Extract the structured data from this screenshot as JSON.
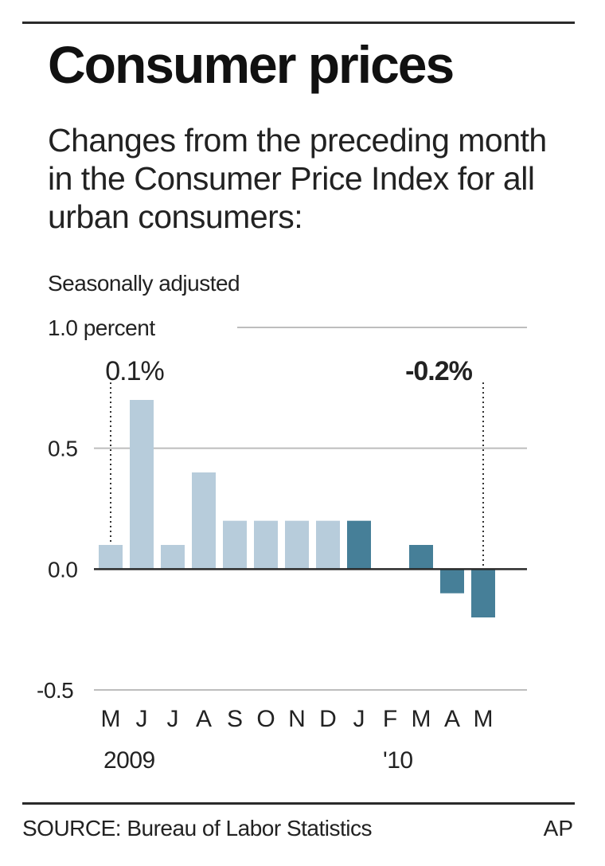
{
  "header": {
    "title": "Consumer prices",
    "subtitle": "Changes from the preceding month in the Consumer Price Index for all urban consumers:",
    "note": "Seasonally adjusted"
  },
  "footer": {
    "source": "SOURCE: Bureau of Labor Statistics",
    "credit": "AP"
  },
  "colors": {
    "bar_2009": "#b7ccdb",
    "bar_2010": "#467f98",
    "gridline": "#bdbdbd",
    "zero_line": "#2a2a2a"
  },
  "chart_data": {
    "type": "bar",
    "title": "Consumer prices",
    "xlabel": "",
    "ylabel": "",
    "unit_label": "percent",
    "categories": [
      "M",
      "J",
      "J",
      "A",
      "S",
      "O",
      "N",
      "D",
      "J",
      "F",
      "M",
      "A",
      "M"
    ],
    "values": [
      0.1,
      0.7,
      0.1,
      0.4,
      0.2,
      0.2,
      0.2,
      0.2,
      0.2,
      0.0,
      0.1,
      -0.1,
      -0.2
    ],
    "year_labels": [
      {
        "index": 0,
        "text": "2009"
      },
      {
        "index": 9,
        "text": "'10"
      }
    ],
    "series_years": [
      "2009",
      "2009",
      "2009",
      "2009",
      "2009",
      "2009",
      "2009",
      "2009",
      "2010",
      "2010",
      "2010",
      "2010",
      "2010"
    ],
    "ylim": [
      -0.5,
      1.0
    ],
    "yticks": [
      1.0,
      0.5,
      0.0,
      -0.5
    ],
    "ytick_labels": [
      "1.0 percent",
      "0.5",
      "0.0",
      "-0.5"
    ],
    "grid": true,
    "annotations": [
      {
        "index": 0,
        "text": "0.1%",
        "bold": false
      },
      {
        "index": 12,
        "text": "-0.2%",
        "bold": true
      }
    ]
  }
}
